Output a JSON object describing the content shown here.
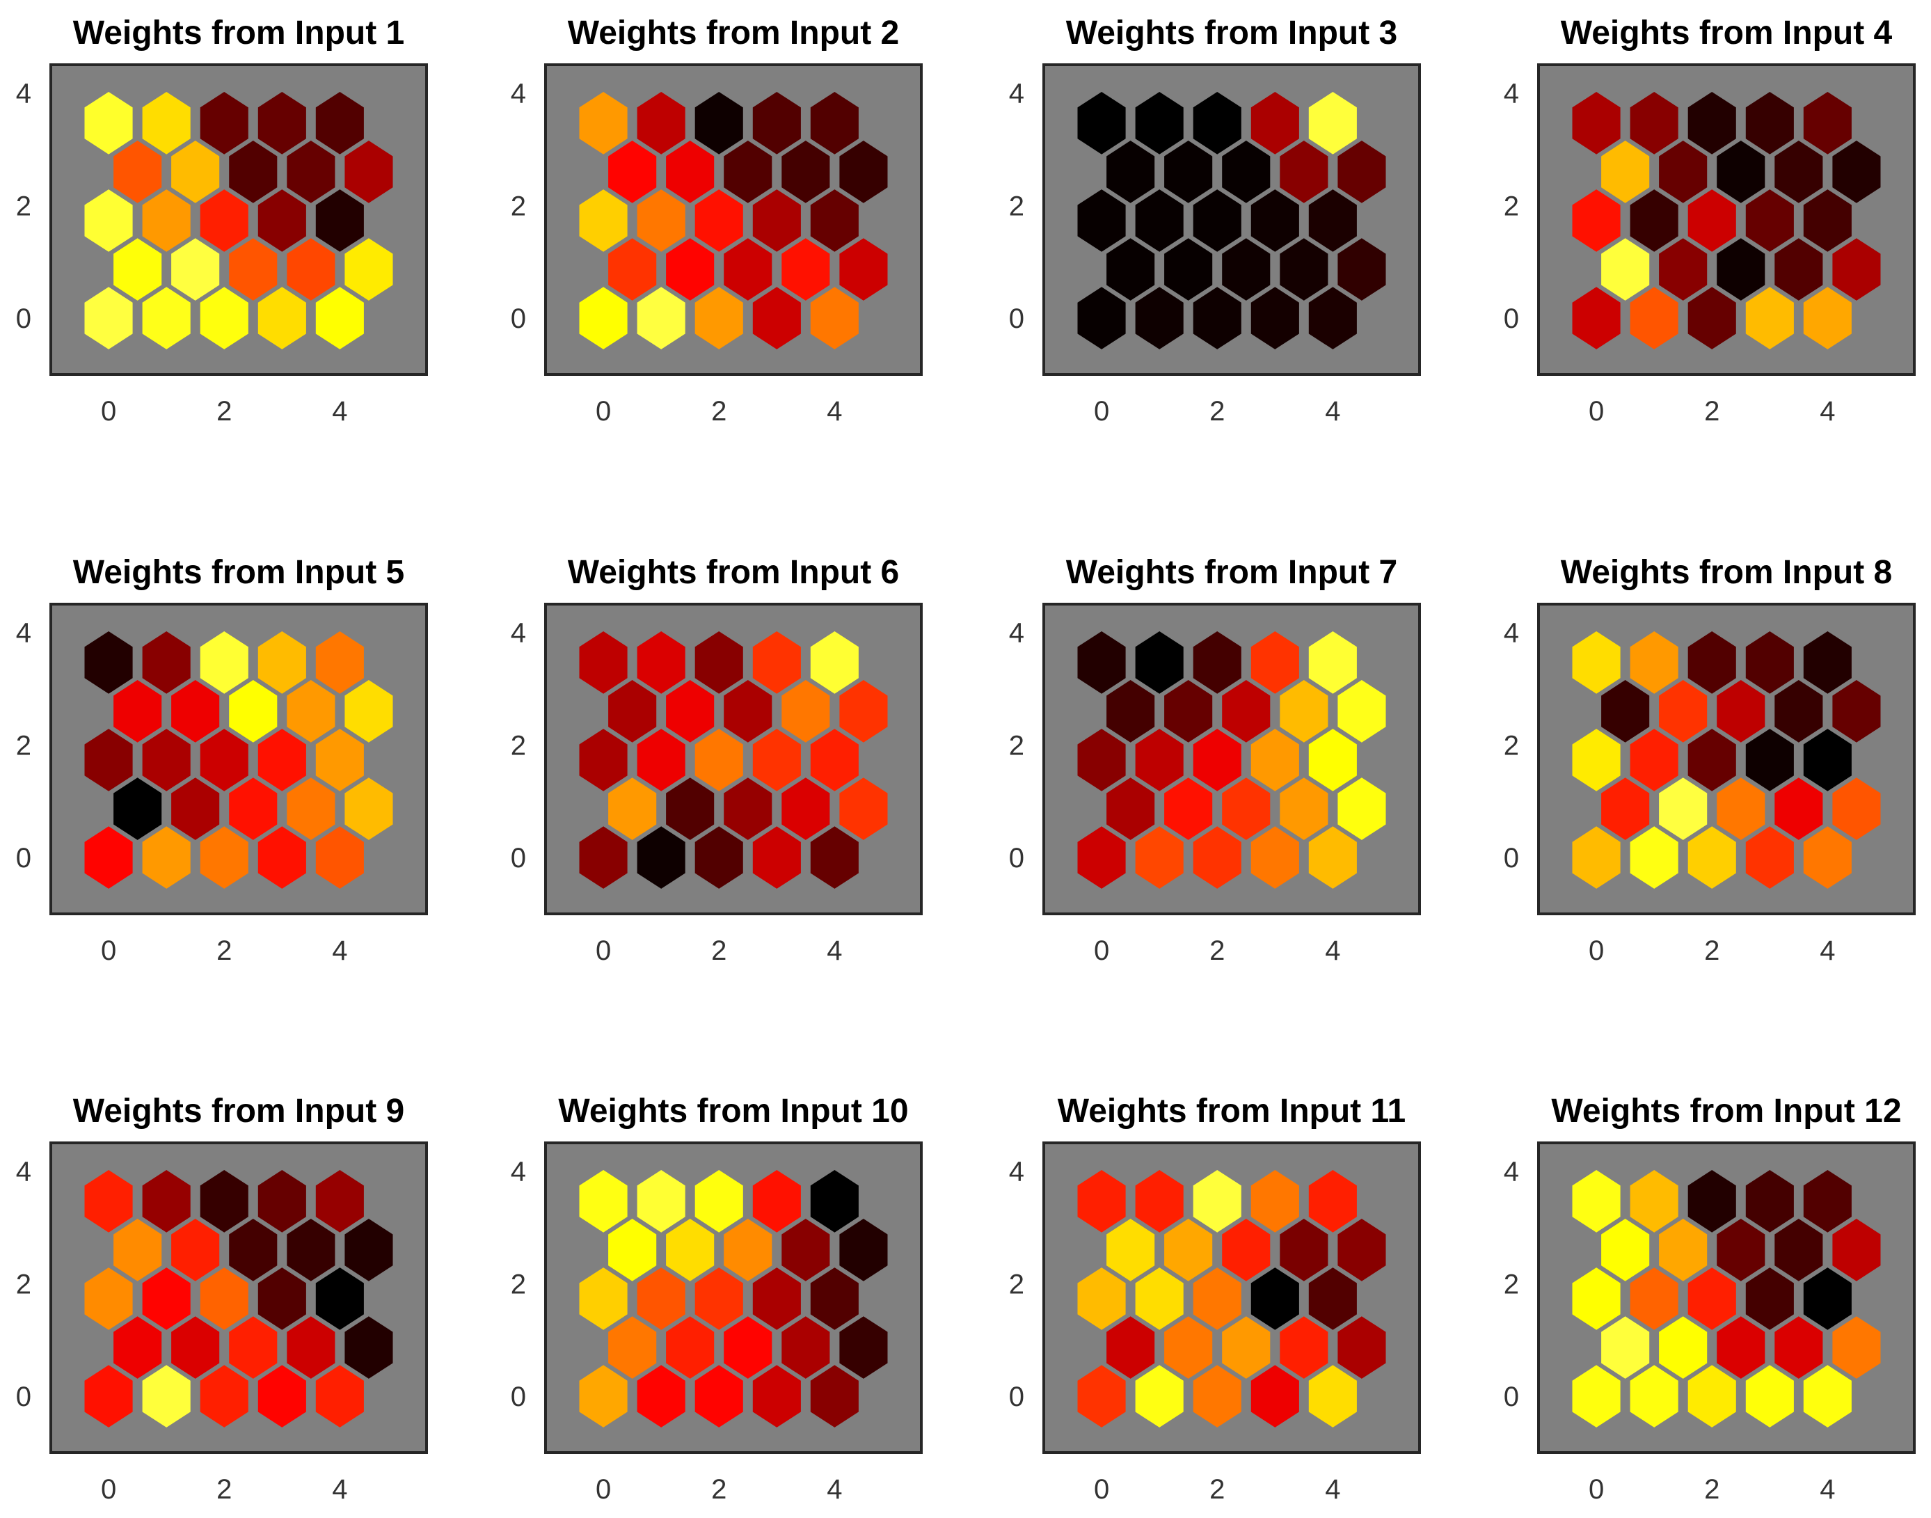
{
  "chart_data": {
    "type": "heatmap",
    "subtype": "hexagonal-weight-planes",
    "colormap": "hot",
    "grid_size": [
      5,
      5
    ],
    "background_color": "#808080",
    "x_ticks": [
      "0",
      "2",
      "4"
    ],
    "y_ticks": [
      "0",
      "2",
      "4"
    ],
    "xlim": [
      -1,
      5.5
    ],
    "ylim": [
      -1,
      4.5
    ],
    "value_range": [
      0,
      1
    ],
    "panels": [
      {
        "title": "Weights from Input 1",
        "values": [
          [
            1.0,
            0.85,
            0.8,
            0.7,
            0.75
          ],
          [
            0.78,
            1.0,
            0.5,
            0.48,
            0.72
          ],
          [
            0.95,
            0.6,
            0.42,
            0.2,
            0.05
          ],
          [
            0.5,
            0.65,
            0.12,
            0.15,
            0.25
          ],
          [
            0.92,
            0.7,
            0.15,
            0.15,
            0.12
          ]
        ]
      },
      {
        "title": "Weights from Input 2",
        "values": [
          [
            0.75,
            1.0,
            0.6,
            0.3,
            0.55
          ],
          [
            0.45,
            0.38,
            0.3,
            0.4,
            0.3
          ],
          [
            0.68,
            0.55,
            0.4,
            0.25,
            0.15
          ],
          [
            0.38,
            0.35,
            0.12,
            0.1,
            0.08
          ],
          [
            0.6,
            0.28,
            0.02,
            0.12,
            0.12
          ]
        ]
      },
      {
        "title": "Weights from Input 3",
        "values": [
          [
            0.01,
            0.02,
            0.02,
            0.03,
            0.04
          ],
          [
            0.01,
            0.01,
            0.02,
            0.03,
            0.07
          ],
          [
            0.01,
            0.01,
            0.01,
            0.02,
            0.04
          ],
          [
            0.01,
            0.01,
            0.01,
            0.2,
            0.15
          ],
          [
            0.0,
            0.0,
            0.0,
            0.25,
            0.98
          ]
        ]
      },
      {
        "title": "Weights from Input 4",
        "values": [
          [
            0.3,
            0.5,
            0.15,
            0.65,
            0.62
          ],
          [
            0.98,
            0.2,
            0.02,
            0.12,
            0.25
          ],
          [
            0.4,
            0.08,
            0.3,
            0.15,
            0.1
          ],
          [
            0.65,
            0.15,
            0.02,
            0.08,
            0.05
          ],
          [
            0.25,
            0.2,
            0.05,
            0.08,
            0.15
          ]
        ]
      },
      {
        "title": "Weights from Input 5",
        "values": [
          [
            0.38,
            0.6,
            0.55,
            0.4,
            0.5
          ],
          [
            0.0,
            0.25,
            0.4,
            0.55,
            0.65
          ],
          [
            0.2,
            0.25,
            0.3,
            0.4,
            0.6
          ],
          [
            0.35,
            0.35,
            0.75,
            0.6,
            0.7
          ],
          [
            0.05,
            0.2,
            0.95,
            0.65,
            0.55
          ]
        ]
      },
      {
        "title": "Weights from Input 6",
        "values": [
          [
            0.2,
            0.02,
            0.12,
            0.3,
            0.15
          ],
          [
            0.6,
            0.12,
            0.22,
            0.32,
            0.45
          ],
          [
            0.25,
            0.35,
            0.55,
            0.45,
            0.42
          ],
          [
            0.25,
            0.35,
            0.25,
            0.55,
            0.45
          ],
          [
            0.28,
            0.32,
            0.2,
            0.45,
            0.95
          ]
        ]
      },
      {
        "title": "Weights from Input 7",
        "values": [
          [
            0.3,
            0.48,
            0.45,
            0.55,
            0.65
          ],
          [
            0.25,
            0.4,
            0.45,
            0.6,
            0.8
          ],
          [
            0.2,
            0.28,
            0.35,
            0.6,
            0.75
          ],
          [
            0.1,
            0.15,
            0.28,
            0.65,
            0.85
          ],
          [
            0.05,
            0.0,
            0.1,
            0.45,
            0.95
          ]
        ]
      },
      {
        "title": "Weights from Input 8",
        "values": [
          [
            0.65,
            0.82,
            0.68,
            0.45,
            0.55
          ],
          [
            0.42,
            1.0,
            0.55,
            0.35,
            0.5
          ],
          [
            0.72,
            0.42,
            0.15,
            0.02,
            0.0
          ],
          [
            0.08,
            0.45,
            0.28,
            0.08,
            0.15
          ],
          [
            0.7,
            0.6,
            0.12,
            0.12,
            0.05
          ]
        ]
      },
      {
        "title": "Weights from Input 9",
        "values": [
          [
            0.4,
            0.98,
            0.42,
            0.38,
            0.42
          ],
          [
            0.35,
            0.32,
            0.42,
            0.3,
            0.05
          ],
          [
            0.58,
            0.38,
            0.52,
            0.12,
            0.0
          ],
          [
            0.58,
            0.42,
            0.1,
            0.08,
            0.05
          ],
          [
            0.42,
            0.22,
            0.08,
            0.15,
            0.22
          ]
        ]
      },
      {
        "title": "Weights from Input 10",
        "values": [
          [
            0.62,
            0.38,
            0.38,
            0.3,
            0.2
          ],
          [
            0.55,
            0.42,
            0.38,
            0.25,
            0.08
          ],
          [
            0.68,
            0.5,
            0.45,
            0.25,
            0.12
          ],
          [
            0.75,
            0.7,
            0.58,
            0.2,
            0.05
          ],
          [
            0.82,
            0.95,
            0.8,
            0.4,
            0.0
          ]
        ]
      },
      {
        "title": "Weights from Input 11",
        "values": [
          [
            0.45,
            0.82,
            0.55,
            0.35,
            0.7
          ],
          [
            0.3,
            0.55,
            0.6,
            0.42,
            0.25
          ],
          [
            0.65,
            0.7,
            0.55,
            0.0,
            0.12
          ],
          [
            0.7,
            0.62,
            0.42,
            0.18,
            0.2
          ],
          [
            0.42,
            0.42,
            0.98,
            0.55,
            0.42
          ]
        ]
      },
      {
        "title": "Weights from Input 12",
        "values": [
          [
            0.8,
            0.8,
            0.72,
            0.78,
            0.8
          ],
          [
            0.98,
            0.75,
            0.32,
            0.32,
            0.55
          ],
          [
            0.75,
            0.52,
            0.42,
            0.1,
            0.0
          ],
          [
            0.75,
            0.62,
            0.15,
            0.1,
            0.28
          ],
          [
            0.82,
            0.65,
            0.05,
            0.1,
            0.12
          ]
        ]
      }
    ]
  }
}
